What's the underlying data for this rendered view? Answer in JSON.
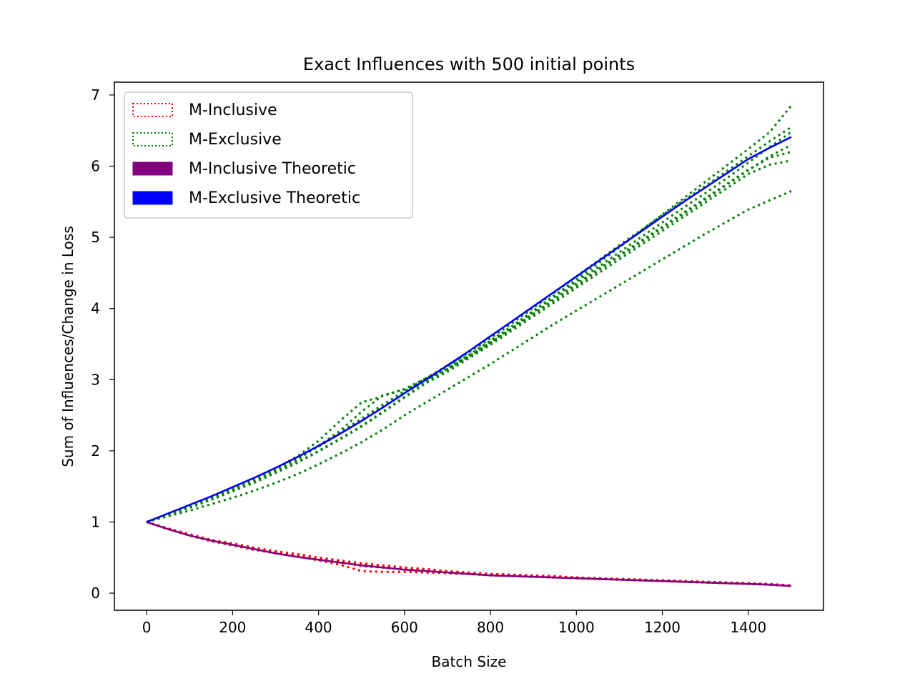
{
  "chart_data": {
    "type": "line",
    "title": "Exact Influences with 500 initial points",
    "xlabel": "Batch Size",
    "ylabel": "Sum of Influences/Change in Loss",
    "xlim": [
      -75,
      1575
    ],
    "ylim": [
      -0.24,
      7.18
    ],
    "xticks": [
      0,
      200,
      400,
      600,
      800,
      1000,
      1200,
      1400
    ],
    "yticks": [
      0,
      1,
      2,
      3,
      4,
      5,
      6,
      7
    ],
    "grid": false,
    "legend_position": "upper-left",
    "legend": [
      {
        "label": "M-Inclusive",
        "color": "#ff0000",
        "style": "dotted-outline"
      },
      {
        "label": "M-Exclusive",
        "color": "#008000",
        "style": "dotted-outline"
      },
      {
        "label": "M-Inclusive Theoretic",
        "color": "#800080",
        "style": "solid"
      },
      {
        "label": "M-Exclusive Theoretic",
        "color": "#0000ff",
        "style": "solid"
      }
    ],
    "x": [
      0,
      50,
      100,
      150,
      200,
      250,
      300,
      350,
      400,
      450,
      500,
      550,
      600,
      650,
      700,
      750,
      800,
      850,
      900,
      950,
      1000,
      1050,
      1100,
      1150,
      1200,
      1250,
      1300,
      1350,
      1400,
      1450,
      1500
    ],
    "series": [
      {
        "group": "M-Inclusive",
        "color": "#ff0000",
        "style": "dotted",
        "values": [
          1.0,
          0.91,
          0.83,
          0.75,
          0.7,
          0.64,
          0.59,
          0.55,
          0.5,
          0.46,
          0.42,
          0.39,
          0.36,
          0.34,
          0.31,
          0.29,
          0.27,
          0.26,
          0.25,
          0.24,
          0.22,
          0.21,
          0.2,
          0.19,
          0.18,
          0.17,
          0.16,
          0.15,
          0.14,
          0.13,
          0.11
        ]
      },
      {
        "group": "M-Inclusive",
        "color": "#ff0000",
        "style": "dotted",
        "values": [
          1.0,
          0.9,
          0.82,
          0.74,
          0.68,
          0.62,
          0.57,
          0.53,
          0.48,
          0.44,
          0.38,
          0.36,
          0.34,
          0.32,
          0.3,
          0.28,
          0.26,
          0.25,
          0.24,
          0.23,
          0.21,
          0.2,
          0.19,
          0.18,
          0.17,
          0.16,
          0.15,
          0.14,
          0.13,
          0.12,
          0.1
        ]
      },
      {
        "group": "M-Inclusive",
        "color": "#ff0000",
        "style": "dotted",
        "values": [
          1.0,
          0.9,
          0.81,
          0.73,
          0.67,
          0.61,
          0.56,
          0.52,
          0.46,
          0.4,
          0.31,
          0.3,
          0.3,
          0.29,
          0.28,
          0.27,
          0.25,
          0.24,
          0.23,
          0.22,
          0.21,
          0.2,
          0.19,
          0.18,
          0.17,
          0.16,
          0.15,
          0.14,
          0.13,
          0.12,
          0.1
        ]
      },
      {
        "group": "M-Inclusive",
        "color": "#ff0000",
        "style": "dotted",
        "values": [
          1.0,
          0.91,
          0.82,
          0.74,
          0.69,
          0.63,
          0.58,
          0.54,
          0.49,
          0.45,
          0.41,
          0.38,
          0.35,
          0.33,
          0.3,
          0.28,
          0.27,
          0.26,
          0.24,
          0.23,
          0.22,
          0.21,
          0.2,
          0.19,
          0.18,
          0.17,
          0.16,
          0.15,
          0.14,
          0.12,
          0.11
        ]
      },
      {
        "group": "M-Exclusive",
        "color": "#008000",
        "style": "dotted",
        "values": [
          1.0,
          1.11,
          1.22,
          1.33,
          1.45,
          1.58,
          1.72,
          1.87,
          2.07,
          2.28,
          2.55,
          2.78,
          2.86,
          3.0,
          3.15,
          3.32,
          3.52,
          3.73,
          3.95,
          4.17,
          4.38,
          4.58,
          4.79,
          5.0,
          5.21,
          5.42,
          5.62,
          5.83,
          6.05,
          6.27,
          6.48
        ]
      },
      {
        "group": "M-Exclusive",
        "color": "#008000",
        "style": "dotted",
        "values": [
          1.0,
          1.11,
          1.23,
          1.35,
          1.47,
          1.6,
          1.75,
          1.92,
          2.14,
          2.42,
          2.68,
          2.77,
          2.87,
          3.02,
          3.18,
          3.35,
          3.55,
          3.75,
          3.97,
          4.19,
          4.41,
          4.63,
          4.86,
          5.09,
          5.32,
          5.55,
          5.78,
          6.01,
          6.24,
          6.48,
          6.85
        ]
      },
      {
        "group": "M-Exclusive",
        "color": "#008000",
        "style": "dotted",
        "values": [
          1.0,
          1.1,
          1.21,
          1.32,
          1.44,
          1.56,
          1.7,
          1.84,
          2.0,
          2.17,
          2.35,
          2.55,
          2.76,
          2.96,
          3.13,
          3.32,
          3.52,
          3.72,
          3.93,
          4.14,
          4.35,
          4.55,
          4.75,
          4.95,
          5.15,
          5.35,
          5.55,
          5.75,
          5.95,
          6.12,
          6.2
        ]
      },
      {
        "group": "M-Exclusive",
        "color": "#008000",
        "style": "dotted",
        "values": [
          1.0,
          1.1,
          1.2,
          1.31,
          1.43,
          1.55,
          1.69,
          1.83,
          1.99,
          2.16,
          2.34,
          2.54,
          2.75,
          2.95,
          3.11,
          3.3,
          3.49,
          3.69,
          3.89,
          4.09,
          4.29,
          4.49,
          4.69,
          4.89,
          5.09,
          5.29,
          5.49,
          5.69,
          5.89,
          6.02,
          6.08
        ]
      },
      {
        "group": "M-Exclusive",
        "color": "#008000",
        "style": "dotted",
        "values": [
          1.0,
          1.1,
          1.21,
          1.33,
          1.45,
          1.58,
          1.72,
          1.88,
          2.06,
          2.24,
          2.42,
          2.62,
          2.82,
          2.98,
          3.15,
          3.33,
          3.52,
          3.72,
          3.92,
          4.12,
          4.32,
          4.53,
          4.73,
          4.93,
          5.13,
          5.33,
          5.53,
          5.74,
          5.94,
          6.14,
          6.3
        ]
      },
      {
        "group": "M-Exclusive",
        "color": "#008000",
        "style": "dotted",
        "values": [
          1.0,
          1.08,
          1.16,
          1.25,
          1.34,
          1.44,
          1.55,
          1.67,
          1.81,
          1.96,
          2.12,
          2.3,
          2.5,
          2.68,
          2.86,
          3.04,
          3.22,
          3.41,
          3.6,
          3.79,
          3.97,
          4.15,
          4.33,
          4.51,
          4.69,
          4.87,
          5.05,
          5.22,
          5.39,
          5.52,
          5.65
        ]
      },
      {
        "group": "M-Exclusive",
        "color": "#008000",
        "style": "dotted",
        "values": [
          1.0,
          1.11,
          1.22,
          1.34,
          1.46,
          1.59,
          1.73,
          1.89,
          2.07,
          2.26,
          2.45,
          2.65,
          2.84,
          3.02,
          3.2,
          3.38,
          3.58,
          3.79,
          4.01,
          4.23,
          4.45,
          4.67,
          4.89,
          5.1,
          5.31,
          5.52,
          5.72,
          5.93,
          6.14,
          6.35,
          6.55
        ]
      },
      {
        "group": "M-Inclusive Theoretic",
        "color": "#800080",
        "style": "solid",
        "values": [
          1.0,
          0.9,
          0.81,
          0.74,
          0.68,
          0.62,
          0.56,
          0.51,
          0.47,
          0.43,
          0.39,
          0.36,
          0.33,
          0.31,
          0.29,
          0.27,
          0.25,
          0.24,
          0.23,
          0.22,
          0.21,
          0.2,
          0.19,
          0.18,
          0.17,
          0.16,
          0.15,
          0.14,
          0.13,
          0.12,
          0.1
        ]
      },
      {
        "group": "M-Exclusive Theoretic",
        "color": "#0000ff",
        "style": "solid",
        "values": [
          1.0,
          1.12,
          1.24,
          1.36,
          1.49,
          1.62,
          1.76,
          1.91,
          2.07,
          2.24,
          2.42,
          2.61,
          2.81,
          3.0,
          3.2,
          3.4,
          3.61,
          3.82,
          4.03,
          4.24,
          4.45,
          4.66,
          4.87,
          5.08,
          5.29,
          5.5,
          5.7,
          5.9,
          6.1,
          6.26,
          6.41
        ]
      }
    ]
  }
}
